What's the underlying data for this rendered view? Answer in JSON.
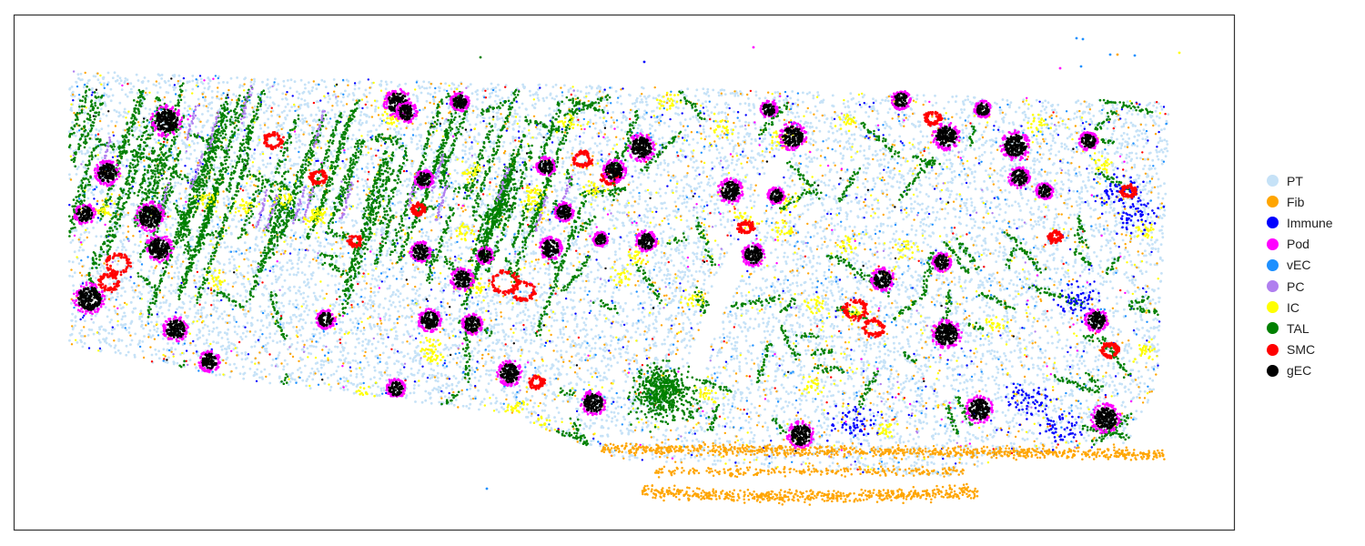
{
  "chart_data": {
    "type": "scatter",
    "title": "",
    "xlabel": "",
    "ylabel": "",
    "axes_visible": false,
    "grid": false,
    "frame": true,
    "legend_position": "right",
    "series": [
      {
        "name": "PT",
        "color": "#c6e2f7",
        "role": "background parenchyma, densest everywhere"
      },
      {
        "name": "Fib",
        "color": "#ffa500",
        "role": "scattered; dense band along bottom edge / capsule"
      },
      {
        "name": "Immune",
        "color": "#0000ff",
        "role": "scattered, clusters near right lower region"
      },
      {
        "name": "Pod",
        "color": "#ff00ff",
        "role": "rings around glomeruli"
      },
      {
        "name": "vEC",
        "color": "#1e90ff",
        "role": "scattered"
      },
      {
        "name": "PC",
        "color": "#b07fef",
        "role": "streaks in upper left"
      },
      {
        "name": "IC",
        "color": "#ffff00",
        "role": "scattered clusters"
      },
      {
        "name": "TAL",
        "color": "#008000",
        "role": "tubular streaks, diagonal in upper left"
      },
      {
        "name": "SMC",
        "color": "#ff0000",
        "role": "vessel outlines"
      },
      {
        "name": "gEC",
        "color": "#000000",
        "role": "glomerular cores"
      }
    ]
  }
}
